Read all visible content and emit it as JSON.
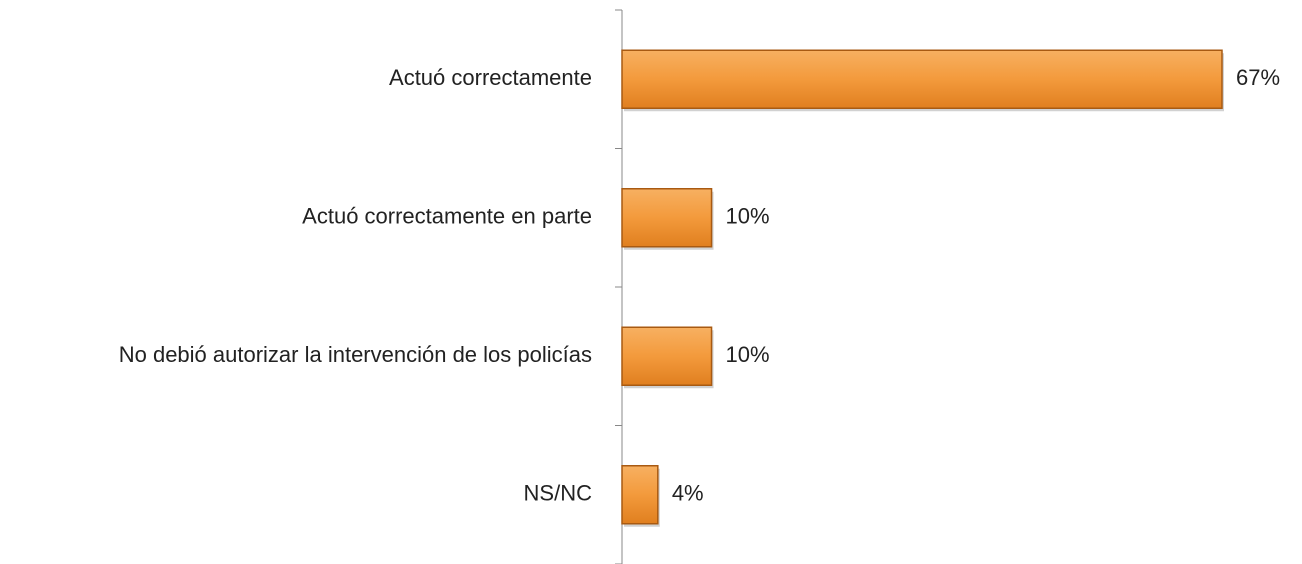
{
  "chart_data": {
    "type": "bar",
    "orientation": "horizontal",
    "categories": [
      "Actuó correctamente",
      "Actuó correctamente en parte",
      "No debió autorizar la intervención de los policías",
      "NS/NC"
    ],
    "values": [
      67,
      10,
      10,
      4
    ],
    "value_labels": [
      "67%",
      "10%",
      "10%",
      "4%"
    ],
    "color": "#f39a3c"
  }
}
